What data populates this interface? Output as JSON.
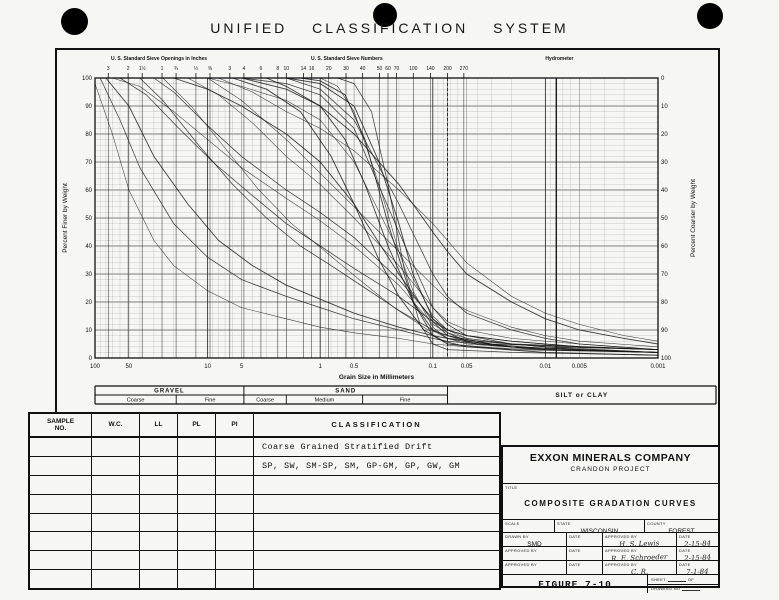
{
  "page": {
    "title": "UNIFIED  CLASSIFICATION  SYSTEM"
  },
  "chart_data": {
    "type": "line",
    "title": "Composite gradation curves (grain size distribution)",
    "xlabel": "Grain Size in Millimeters",
    "ylabel_left": "Percent Finer by Weight",
    "ylabel_right": "Percent Coarser by Weight",
    "x_scale": "log",
    "x_range_mm": [
      100,
      0.001
    ],
    "ylim": [
      0,
      100
    ],
    "grid": true,
    "y_ticks": [
      0,
      10,
      20,
      30,
      40,
      50,
      60,
      70,
      80,
      90,
      100
    ],
    "x_ticks": [
      {
        "label": "100",
        "mm": 100
      },
      {
        "label": "50",
        "mm": 50
      },
      {
        "label": "10",
        "mm": 10
      },
      {
        "label": "5",
        "mm": 5
      },
      {
        "label": "1",
        "mm": 1
      },
      {
        "label": "0.5",
        "mm": 0.5
      },
      {
        "label": "0.1",
        "mm": 0.1
      },
      {
        "label": "0.05",
        "mm": 0.05
      },
      {
        "label": "0.01",
        "mm": 0.01
      },
      {
        "label": "0.005",
        "mm": 0.005
      },
      {
        "label": "0.001",
        "mm": 0.001
      }
    ],
    "top_axis": {
      "inches_header": "U. S. Standard Sieve Openings in Inches",
      "numbers_header": "U. S. Standard Sieve Numbers",
      "hydrometer_header": "Hydrometer",
      "inch_ticks": [
        {
          "label": "3",
          "mm": 76.2
        },
        {
          "label": "2",
          "mm": 50.8
        },
        {
          "label": "1½",
          "mm": 38.1
        },
        {
          "label": "1",
          "mm": 25.4
        },
        {
          "label": "¾",
          "mm": 19.05
        },
        {
          "label": "½",
          "mm": 12.7
        },
        {
          "label": "⅜",
          "mm": 9.52
        }
      ],
      "number_ticks": [
        {
          "label": "3",
          "mm": 6.35
        },
        {
          "label": "4",
          "mm": 4.76
        },
        {
          "label": "6",
          "mm": 3.36
        },
        {
          "label": "8",
          "mm": 2.38
        },
        {
          "label": "10",
          "mm": 2.0
        },
        {
          "label": "14",
          "mm": 1.41
        },
        {
          "label": "16",
          "mm": 1.19
        },
        {
          "label": "20",
          "mm": 0.84
        },
        {
          "label": "30",
          "mm": 0.59
        },
        {
          "label": "40",
          "mm": 0.42
        },
        {
          "label": "50",
          "mm": 0.297
        },
        {
          "label": "60",
          "mm": 0.25
        },
        {
          "label": "70",
          "mm": 0.21
        },
        {
          "label": "100",
          "mm": 0.149
        },
        {
          "label": "140",
          "mm": 0.105
        },
        {
          "label": "200",
          "mm": 0.074
        },
        {
          "label": "270",
          "mm": 0.053
        }
      ]
    },
    "reference_line_mm": 0.074,
    "heavy_vertical_line_mm": 0.008,
    "series": [
      [
        [
          70,
          100
        ],
        [
          40,
          97
        ],
        [
          20,
          88
        ],
        [
          10,
          78
        ],
        [
          5,
          68
        ],
        [
          2,
          57
        ],
        [
          1,
          49
        ],
        [
          0.5,
          40
        ],
        [
          0.2,
          26
        ],
        [
          0.1,
          12
        ],
        [
          0.074,
          9
        ],
        [
          0.05,
          7
        ],
        [
          0.02,
          5
        ],
        [
          0.01,
          4
        ],
        [
          0.005,
          3
        ],
        [
          0.001,
          2
        ]
      ],
      [
        [
          30,
          100
        ],
        [
          20,
          95
        ],
        [
          10,
          83
        ],
        [
          5,
          72
        ],
        [
          2,
          60
        ],
        [
          1,
          52
        ],
        [
          0.5,
          43
        ],
        [
          0.2,
          28
        ],
        [
          0.1,
          14
        ],
        [
          0.074,
          10
        ],
        [
          0.05,
          8
        ],
        [
          0.02,
          6
        ],
        [
          0.01,
          5
        ],
        [
          0.005,
          4
        ],
        [
          0.001,
          3
        ]
      ],
      [
        [
          20,
          100
        ],
        [
          10,
          96
        ],
        [
          5,
          90
        ],
        [
          2,
          80
        ],
        [
          1,
          70
        ],
        [
          0.5,
          55
        ],
        [
          0.2,
          30
        ],
        [
          0.1,
          13
        ],
        [
          0.074,
          8
        ],
        [
          0.05,
          6
        ],
        [
          0.02,
          4
        ],
        [
          0.01,
          3
        ],
        [
          0.001,
          2
        ]
      ],
      [
        [
          10,
          100
        ],
        [
          5,
          97
        ],
        [
          2,
          92
        ],
        [
          1,
          85
        ],
        [
          0.5,
          70
        ],
        [
          0.2,
          38
        ],
        [
          0.1,
          15
        ],
        [
          0.074,
          10
        ],
        [
          0.05,
          7
        ],
        [
          0.02,
          5
        ],
        [
          0.01,
          4
        ],
        [
          0.001,
          2
        ]
      ],
      [
        [
          5,
          100
        ],
        [
          2,
          98
        ],
        [
          1,
          94
        ],
        [
          0.5,
          82
        ],
        [
          0.2,
          45
        ],
        [
          0.1,
          18
        ],
        [
          0.074,
          12
        ],
        [
          0.05,
          8
        ],
        [
          0.02,
          5
        ],
        [
          0.01,
          4
        ],
        [
          0.001,
          3
        ]
      ],
      [
        [
          2,
          100
        ],
        [
          1,
          98
        ],
        [
          0.5,
          90
        ],
        [
          0.3,
          70
        ],
        [
          0.2,
          48
        ],
        [
          0.15,
          30
        ],
        [
          0.1,
          14
        ],
        [
          0.074,
          9
        ],
        [
          0.05,
          6
        ],
        [
          0.02,
          4
        ],
        [
          0.001,
          2
        ]
      ],
      [
        [
          1,
          100
        ],
        [
          0.7,
          97
        ],
        [
          0.5,
          88
        ],
        [
          0.3,
          62
        ],
        [
          0.2,
          38
        ],
        [
          0.15,
          24
        ],
        [
          0.1,
          11
        ],
        [
          0.074,
          7
        ],
        [
          0.05,
          5
        ],
        [
          0.01,
          3
        ],
        [
          0.001,
          2
        ]
      ],
      [
        [
          2,
          100
        ],
        [
          1,
          96
        ],
        [
          0.5,
          85
        ],
        [
          0.2,
          55
        ],
        [
          0.1,
          30
        ],
        [
          0.074,
          22
        ],
        [
          0.05,
          16
        ],
        [
          0.02,
          10
        ],
        [
          0.01,
          7
        ],
        [
          0.005,
          5
        ],
        [
          0.001,
          3
        ]
      ],
      [
        [
          5,
          100
        ],
        [
          2,
          96
        ],
        [
          1,
          90
        ],
        [
          0.5,
          80
        ],
        [
          0.2,
          62
        ],
        [
          0.1,
          45
        ],
        [
          0.074,
          38
        ],
        [
          0.05,
          30
        ],
        [
          0.02,
          20
        ],
        [
          0.01,
          14
        ],
        [
          0.005,
          10
        ],
        [
          0.002,
          7
        ],
        [
          0.001,
          5
        ]
      ],
      [
        [
          10,
          100
        ],
        [
          5,
          92
        ],
        [
          2,
          78
        ],
        [
          1,
          66
        ],
        [
          0.5,
          54
        ],
        [
          0.2,
          38
        ],
        [
          0.1,
          26
        ],
        [
          0.074,
          21
        ],
        [
          0.05,
          17
        ],
        [
          0.02,
          11
        ],
        [
          0.01,
          8
        ],
        [
          0.005,
          6
        ],
        [
          0.001,
          4
        ]
      ],
      [
        [
          90,
          100
        ],
        [
          60,
          85
        ],
        [
          40,
          68
        ],
        [
          20,
          48
        ],
        [
          10,
          36
        ],
        [
          5,
          28
        ],
        [
          2,
          22
        ],
        [
          1,
          18
        ],
        [
          0.5,
          14
        ],
        [
          0.2,
          10
        ],
        [
          0.1,
          7
        ],
        [
          0.074,
          6
        ],
        [
          0.02,
          4
        ],
        [
          0.005,
          3
        ],
        [
          0.001,
          2
        ]
      ],
      [
        [
          80,
          100
        ],
        [
          50,
          90
        ],
        [
          30,
          72
        ],
        [
          15,
          55
        ],
        [
          8,
          42
        ],
        [
          4,
          33
        ],
        [
          2,
          26
        ],
        [
          1,
          21
        ],
        [
          0.5,
          16
        ],
        [
          0.2,
          11
        ],
        [
          0.1,
          8
        ],
        [
          0.074,
          7
        ],
        [
          0.02,
          5
        ],
        [
          0.001,
          3
        ]
      ],
      [
        [
          100,
          98
        ],
        [
          70,
          80
        ],
        [
          50,
          60
        ],
        [
          30,
          42
        ],
        [
          20,
          33
        ],
        [
          10,
          24
        ],
        [
          5,
          18
        ],
        [
          2,
          14
        ],
        [
          1,
          11
        ],
        [
          0.5,
          9
        ],
        [
          0.2,
          7
        ],
        [
          0.1,
          5
        ],
        [
          0.05,
          4
        ],
        [
          0.01,
          3
        ],
        [
          0.001,
          2
        ]
      ],
      [
        [
          0.7,
          100
        ],
        [
          0.5,
          98
        ],
        [
          0.35,
          88
        ],
        [
          0.25,
          62
        ],
        [
          0.18,
          32
        ],
        [
          0.13,
          12
        ],
        [
          0.1,
          5
        ],
        [
          0.074,
          3
        ],
        [
          0.02,
          2
        ],
        [
          0.001,
          1
        ]
      ],
      [
        [
          1.5,
          100
        ],
        [
          1,
          99
        ],
        [
          0.6,
          94
        ],
        [
          0.4,
          78
        ],
        [
          0.25,
          48
        ],
        [
          0.15,
          20
        ],
        [
          0.1,
          8
        ],
        [
          0.074,
          5
        ],
        [
          0.02,
          3
        ],
        [
          0.001,
          2
        ]
      ],
      [
        [
          15,
          100
        ],
        [
          8,
          94
        ],
        [
          4,
          84
        ],
        [
          2,
          72
        ],
        [
          1,
          62
        ],
        [
          0.5,
          50
        ],
        [
          0.2,
          33
        ],
        [
          0.1,
          18
        ],
        [
          0.074,
          13
        ],
        [
          0.05,
          10
        ],
        [
          0.02,
          7
        ],
        [
          0.005,
          5
        ],
        [
          0.001,
          3
        ]
      ],
      [
        [
          40,
          100
        ],
        [
          25,
          92
        ],
        [
          12,
          76
        ],
        [
          6,
          62
        ],
        [
          3,
          50
        ],
        [
          1.5,
          40
        ],
        [
          0.8,
          33
        ],
        [
          0.4,
          25
        ],
        [
          0.2,
          17
        ],
        [
          0.1,
          10
        ],
        [
          0.074,
          8
        ],
        [
          0.03,
          5
        ],
        [
          0.005,
          4
        ],
        [
          0.001,
          3
        ]
      ],
      [
        [
          3,
          100
        ],
        [
          2,
          97
        ],
        [
          1,
          90
        ],
        [
          0.6,
          78
        ],
        [
          0.4,
          62
        ],
        [
          0.25,
          40
        ],
        [
          0.15,
          20
        ],
        [
          0.1,
          10
        ],
        [
          0.074,
          7
        ],
        [
          0.04,
          5
        ],
        [
          0.01,
          3
        ],
        [
          0.001,
          2
        ]
      ],
      [
        [
          8,
          100
        ],
        [
          4,
          95
        ],
        [
          2,
          88
        ],
        [
          1,
          82
        ],
        [
          0.5,
          74
        ],
        [
          0.2,
          60
        ],
        [
          0.1,
          48
        ],
        [
          0.074,
          42
        ],
        [
          0.05,
          34
        ],
        [
          0.02,
          22
        ],
        [
          0.01,
          16
        ],
        [
          0.005,
          12
        ],
        [
          0.002,
          8
        ],
        [
          0.001,
          6
        ]
      ],
      [
        [
          60,
          100
        ],
        [
          35,
          94
        ],
        [
          18,
          82
        ],
        [
          9,
          70
        ],
        [
          4,
          58
        ],
        [
          2,
          48
        ],
        [
          1,
          40
        ],
        [
          0.5,
          32
        ],
        [
          0.2,
          22
        ],
        [
          0.1,
          13
        ],
        [
          0.074,
          10
        ],
        [
          0.05,
          8
        ],
        [
          0.02,
          6
        ],
        [
          0.01,
          5
        ],
        [
          0.005,
          4
        ],
        [
          0.001,
          3
        ]
      ],
      [
        [
          6,
          100
        ],
        [
          3,
          96
        ],
        [
          1.5,
          88
        ],
        [
          0.8,
          72
        ],
        [
          0.5,
          55
        ],
        [
          0.3,
          35
        ],
        [
          0.2,
          22
        ],
        [
          0.12,
          10
        ],
        [
          0.08,
          6
        ],
        [
          0.05,
          4
        ],
        [
          0.01,
          2
        ],
        [
          0.001,
          1
        ]
      ],
      [
        [
          25,
          100
        ],
        [
          14,
          90
        ],
        [
          7,
          75
        ],
        [
          3.5,
          60
        ],
        [
          1.8,
          48
        ],
        [
          0.9,
          38
        ],
        [
          0.45,
          28
        ],
        [
          0.22,
          18
        ],
        [
          0.11,
          10
        ],
        [
          0.074,
          8
        ],
        [
          0.03,
          5
        ],
        [
          0.008,
          3
        ],
        [
          0.001,
          2
        ]
      ]
    ]
  },
  "zones": {
    "groups": [
      {
        "label": "GRAVEL",
        "from_mm": 100,
        "to_mm": 4.76,
        "subs": [
          {
            "label": "Coarse",
            "from_mm": 100,
            "to_mm": 19
          },
          {
            "label": "Fine",
            "from_mm": 19,
            "to_mm": 4.76
          }
        ]
      },
      {
        "label": "SAND",
        "from_mm": 4.76,
        "to_mm": 0.074,
        "subs": [
          {
            "label": "Coarse",
            "from_mm": 4.76,
            "to_mm": 2.0
          },
          {
            "label": "Medium",
            "from_mm": 2.0,
            "to_mm": 0.42
          },
          {
            "label": "Fine",
            "from_mm": 0.42,
            "to_mm": 0.074
          }
        ]
      },
      {
        "label": "SILT or CLAY",
        "from_mm": 0.074,
        "to_mm": null,
        "subs": []
      }
    ]
  },
  "table": {
    "headers": [
      "SAMPLE\nNO.",
      "W.C.",
      "LL",
      "PL",
      "PI",
      "CLASSIFICATION"
    ],
    "classification_lines": [
      "Coarse Grained Stratified Drift",
      "SP, SW, SM-SP, SM, GP-GM, GP, GW, GM"
    ],
    "empty_rows": 6
  },
  "title_block": {
    "company": "EXXON MINERALS COMPANY",
    "project": "CRANDON PROJECT",
    "title_label": "TITLE",
    "title": "COMPOSITE GRADATION CURVES",
    "scale_label": "SCALE",
    "state_label": "STATE",
    "state": "WISCONSIN",
    "county_label": "COUNTY",
    "county": "FOREST",
    "rows": [
      {
        "left_label": "DRAWN BY",
        "left_value": "SMD",
        "left_date_label": "DATE",
        "left_date": "",
        "right_label": "APPROVED BY",
        "right_value": "H. S. Lewis",
        "right_date_label": "DATE",
        "right_date": "2-15-84"
      },
      {
        "left_label": "APPROVED BY",
        "left_value": "",
        "left_date_label": "DATE",
        "left_date": "",
        "right_label": "APPROVED BY",
        "right_value": "R. E. Schroeder",
        "right_date_label": "DATE",
        "right_date": "2-15-84"
      },
      {
        "left_label": "APPROVED BY",
        "left_value": "",
        "left_date_label": "DATE",
        "left_date": "",
        "right_label": "APPROVED BY",
        "right_value": "C. R.",
        "right_date_label": "DATE",
        "right_date": "7-1-84"
      }
    ],
    "figure": "FIGURE 7-10",
    "sheet_label": "SHEET",
    "of_label": "OF",
    "drawing_no_label": "DRAWING NO"
  }
}
